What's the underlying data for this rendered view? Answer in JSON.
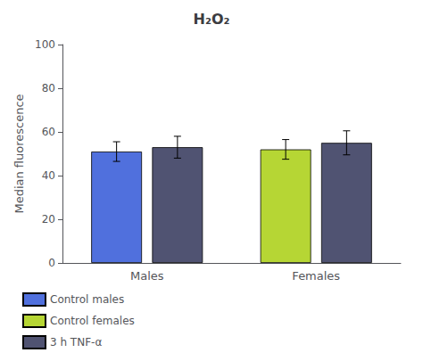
{
  "chart_data": {
    "type": "bar",
    "title": "H₂O₂",
    "ylabel": "Median fluorescence",
    "categories": [
      "Males",
      "Females"
    ],
    "series": [
      {
        "name": "Control males",
        "values": [
          51,
          null
        ],
        "errors": [
          4.5,
          null
        ]
      },
      {
        "name": "Control females",
        "values": [
          null,
          52
        ],
        "errors": [
          null,
          4.5
        ]
      },
      {
        "name": "3 h TNF-α",
        "values": [
          53,
          55
        ],
        "errors": [
          5.0,
          5.5
        ]
      }
    ],
    "ylim": [
      0,
      100
    ],
    "yticks": [
      0,
      20,
      40,
      60,
      80,
      100
    ],
    "grid": false,
    "legend": "lower left"
  }
}
